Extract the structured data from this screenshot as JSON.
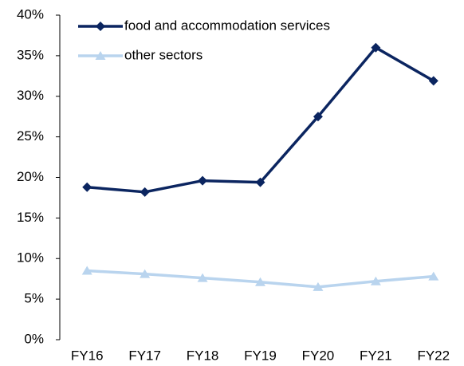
{
  "chart_data": {
    "type": "line",
    "categories": [
      "FY16",
      "FY17",
      "FY18",
      "FY19",
      "FY20",
      "FY21",
      "FY22"
    ],
    "series": [
      {
        "name": "food and accommodation services",
        "color": "#0b2560",
        "marker": "diamond",
        "values": [
          18.8,
          18.2,
          19.6,
          19.4,
          27.5,
          36.0,
          31.9
        ]
      },
      {
        "name": "other sectors",
        "color": "#b9d4ee",
        "marker": "triangle",
        "values": [
          8.5,
          8.1,
          7.6,
          7.1,
          6.5,
          7.2,
          7.8
        ]
      }
    ],
    "ylim": [
      0,
      40
    ],
    "yticks": [
      {
        "value": 0,
        "label": "0%"
      },
      {
        "value": 5,
        "label": "5%"
      },
      {
        "value": 10,
        "label": "10%"
      },
      {
        "value": 15,
        "label": "15%"
      },
      {
        "value": 20,
        "label": "20%"
      },
      {
        "value": 25,
        "label": "25%"
      },
      {
        "value": 30,
        "label": "30%"
      },
      {
        "value": 35,
        "label": "35%"
      },
      {
        "value": 40,
        "label": "40%"
      }
    ],
    "grid": false,
    "legend": "top-left"
  }
}
